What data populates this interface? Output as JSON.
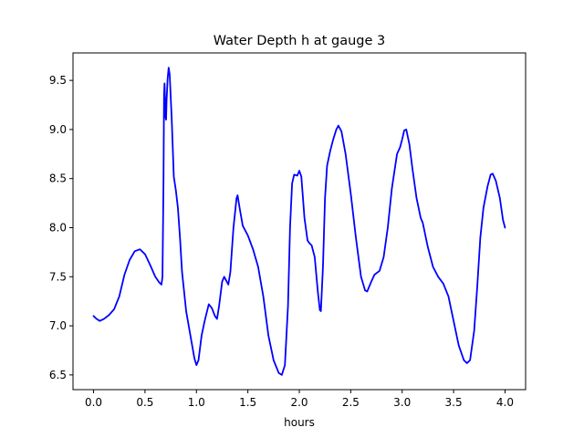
{
  "chart_data": {
    "type": "line",
    "title": "Water Depth h at gauge 3",
    "xlabel": "hours",
    "ylabel": "",
    "xlim": [
      -0.2,
      4.2
    ],
    "ylim": [
      6.35,
      9.78
    ],
    "grid": false,
    "x_ticks": [
      0.0,
      0.5,
      1.0,
      1.5,
      2.0,
      2.5,
      3.0,
      3.5,
      4.0
    ],
    "x_tick_labels": [
      "0.0",
      "0.5",
      "1.0",
      "1.5",
      "2.0",
      "2.5",
      "3.0",
      "3.5",
      "4.0"
    ],
    "y_ticks": [
      6.5,
      7.0,
      7.5,
      8.0,
      8.5,
      9.0,
      9.5
    ],
    "y_tick_labels": [
      "6.5",
      "7.0",
      "7.5",
      "8.0",
      "8.5",
      "9.0",
      "9.5"
    ],
    "series": [
      {
        "color": "#0000ff",
        "points": [
          [
            0.0,
            7.1
          ],
          [
            0.03,
            7.07
          ],
          [
            0.06,
            7.05
          ],
          [
            0.1,
            7.07
          ],
          [
            0.15,
            7.11
          ],
          [
            0.2,
            7.17
          ],
          [
            0.25,
            7.3
          ],
          [
            0.3,
            7.52
          ],
          [
            0.35,
            7.67
          ],
          [
            0.4,
            7.76
          ],
          [
            0.45,
            7.78
          ],
          [
            0.5,
            7.73
          ],
          [
            0.55,
            7.62
          ],
          [
            0.6,
            7.5
          ],
          [
            0.64,
            7.44
          ],
          [
            0.66,
            7.42
          ],
          [
            0.67,
            7.5
          ],
          [
            0.68,
            8.5
          ],
          [
            0.685,
            9.35
          ],
          [
            0.69,
            9.47
          ],
          [
            0.695,
            9.3
          ],
          [
            0.7,
            9.12
          ],
          [
            0.705,
            9.1
          ],
          [
            0.71,
            9.3
          ],
          [
            0.72,
            9.52
          ],
          [
            0.73,
            9.63
          ],
          [
            0.74,
            9.56
          ],
          [
            0.76,
            9.1
          ],
          [
            0.78,
            8.52
          ],
          [
            0.8,
            8.38
          ],
          [
            0.82,
            8.2
          ],
          [
            0.84,
            7.9
          ],
          [
            0.86,
            7.55
          ],
          [
            0.9,
            7.15
          ],
          [
            0.95,
            6.85
          ],
          [
            0.98,
            6.67
          ],
          [
            1.0,
            6.6
          ],
          [
            1.02,
            6.65
          ],
          [
            1.05,
            6.9
          ],
          [
            1.08,
            7.05
          ],
          [
            1.12,
            7.22
          ],
          [
            1.15,
            7.18
          ],
          [
            1.18,
            7.1
          ],
          [
            1.2,
            7.07
          ],
          [
            1.22,
            7.2
          ],
          [
            1.25,
            7.45
          ],
          [
            1.27,
            7.5
          ],
          [
            1.29,
            7.46
          ],
          [
            1.31,
            7.42
          ],
          [
            1.33,
            7.55
          ],
          [
            1.36,
            8.0
          ],
          [
            1.39,
            8.3
          ],
          [
            1.4,
            8.33
          ],
          [
            1.42,
            8.2
          ],
          [
            1.45,
            8.02
          ],
          [
            1.5,
            7.92
          ],
          [
            1.55,
            7.78
          ],
          [
            1.6,
            7.6
          ],
          [
            1.65,
            7.3
          ],
          [
            1.7,
            6.9
          ],
          [
            1.75,
            6.65
          ],
          [
            1.8,
            6.52
          ],
          [
            1.83,
            6.5
          ],
          [
            1.86,
            6.6
          ],
          [
            1.89,
            7.2
          ],
          [
            1.91,
            8.0
          ],
          [
            1.93,
            8.45
          ],
          [
            1.95,
            8.54
          ],
          [
            1.98,
            8.53
          ],
          [
            2.0,
            8.58
          ],
          [
            2.02,
            8.52
          ],
          [
            2.05,
            8.1
          ],
          [
            2.08,
            7.87
          ],
          [
            2.1,
            7.84
          ],
          [
            2.12,
            7.82
          ],
          [
            2.15,
            7.7
          ],
          [
            2.18,
            7.35
          ],
          [
            2.2,
            7.16
          ],
          [
            2.21,
            7.15
          ],
          [
            2.23,
            7.6
          ],
          [
            2.25,
            8.3
          ],
          [
            2.27,
            8.63
          ],
          [
            2.3,
            8.78
          ],
          [
            2.33,
            8.9
          ],
          [
            2.36,
            9.0
          ],
          [
            2.38,
            9.04
          ],
          [
            2.41,
            8.98
          ],
          [
            2.45,
            8.75
          ],
          [
            2.5,
            8.35
          ],
          [
            2.55,
            7.9
          ],
          [
            2.6,
            7.5
          ],
          [
            2.64,
            7.36
          ],
          [
            2.66,
            7.35
          ],
          [
            2.7,
            7.45
          ],
          [
            2.73,
            7.52
          ],
          [
            2.78,
            7.56
          ],
          [
            2.82,
            7.7
          ],
          [
            2.86,
            8.0
          ],
          [
            2.9,
            8.4
          ],
          [
            2.95,
            8.75
          ],
          [
            2.98,
            8.82
          ],
          [
            3.0,
            8.9
          ],
          [
            3.02,
            8.99
          ],
          [
            3.04,
            9.0
          ],
          [
            3.07,
            8.85
          ],
          [
            3.1,
            8.6
          ],
          [
            3.14,
            8.3
          ],
          [
            3.18,
            8.1
          ],
          [
            3.2,
            8.05
          ],
          [
            3.25,
            7.8
          ],
          [
            3.3,
            7.6
          ],
          [
            3.35,
            7.5
          ],
          [
            3.4,
            7.43
          ],
          [
            3.45,
            7.3
          ],
          [
            3.5,
            7.05
          ],
          [
            3.55,
            6.8
          ],
          [
            3.6,
            6.65
          ],
          [
            3.63,
            6.62
          ],
          [
            3.66,
            6.65
          ],
          [
            3.7,
            6.95
          ],
          [
            3.73,
            7.4
          ],
          [
            3.76,
            7.9
          ],
          [
            3.79,
            8.2
          ],
          [
            3.83,
            8.42
          ],
          [
            3.86,
            8.54
          ],
          [
            3.88,
            8.55
          ],
          [
            3.91,
            8.48
          ],
          [
            3.95,
            8.3
          ],
          [
            3.98,
            8.08
          ],
          [
            4.0,
            8.0
          ]
        ]
      }
    ]
  }
}
